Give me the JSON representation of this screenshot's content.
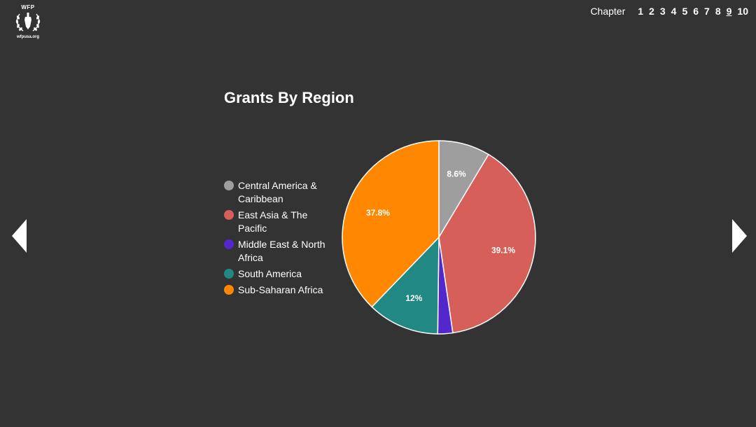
{
  "logo": {
    "top_text": "WFP",
    "bottom_text": "wfpusa.org"
  },
  "nav": {
    "chapter_label": "Chapter",
    "chapters": [
      "1",
      "2",
      "3",
      "4",
      "5",
      "6",
      "7",
      "8",
      "9",
      "10"
    ],
    "active_chapter": "9"
  },
  "colors": {
    "background": "#333333",
    "central_america": "#9e9e9e",
    "east_asia": "#d65f59",
    "middle_east": "#5227cc",
    "south_america": "#218883",
    "sub_saharan": "#ff8800"
  },
  "icons": {
    "prev": "triangle-left-icon",
    "next": "triangle-right-icon",
    "logo": "wfp-laurel-icon"
  },
  "chart_data": {
    "type": "pie",
    "title": "Grants By Region",
    "legend_position": "left",
    "slices": [
      {
        "name": "Central America & Caribbean",
        "value": 8.6,
        "label": "8.6%",
        "color": "#9e9e9e"
      },
      {
        "name": "East Asia & The Pacific",
        "value": 39.1,
        "label": "39.1%",
        "color": "#d65f59"
      },
      {
        "name": "Middle East & North Africa",
        "value": 2.5,
        "label": "",
        "color": "#5227cc"
      },
      {
        "name": "South America",
        "value": 12,
        "label": "12%",
        "color": "#218883"
      },
      {
        "name": "Sub-Saharan Africa",
        "value": 37.8,
        "label": "37.8%",
        "color": "#ff8800"
      }
    ]
  }
}
